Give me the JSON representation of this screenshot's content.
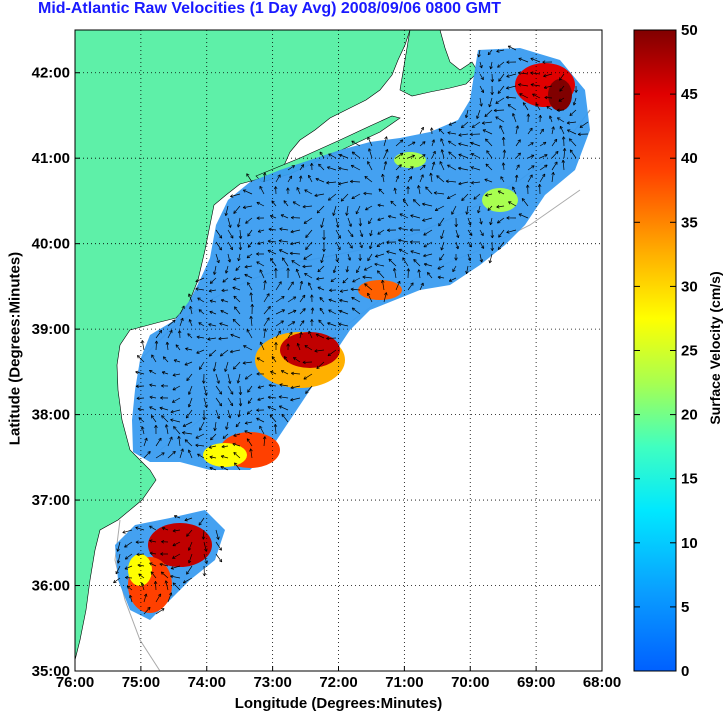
{
  "title": "Mid-Atlantic Raw Velocities (1 Day Avg) 2008/09/06 0800 GMT",
  "xlabel": "Longitude (Degrees:Minutes)",
  "ylabel": "Latitude (Degrees:Minutes)",
  "colorbar_label": "Surface Velocity (cm/s)",
  "x_ticks": [
    "76:00",
    "75:00",
    "74:00",
    "73:00",
    "72:00",
    "71:00",
    "70:00",
    "69:00",
    "68:00"
  ],
  "y_ticks": [
    "35:00",
    "36:00",
    "37:00",
    "38:00",
    "39:00",
    "40:00",
    "41:00",
    "42:00"
  ],
  "colorbar_ticks": [
    "0",
    "5",
    "10",
    "15",
    "20",
    "25",
    "30",
    "35",
    "40",
    "45",
    "50"
  ],
  "colors": {
    "land": "#5ef0a8",
    "title": "#1a1aff",
    "low_speed": "#3a9cf0",
    "high_speed": "#8b0000"
  },
  "chart_data": {
    "type": "heatmap",
    "x_range_deg_west": [
      76,
      68
    ],
    "y_range_deg_north": [
      35,
      42.5
    ],
    "colorbar_range": [
      0,
      50
    ],
    "grid": true,
    "colormap": "jet"
  }
}
